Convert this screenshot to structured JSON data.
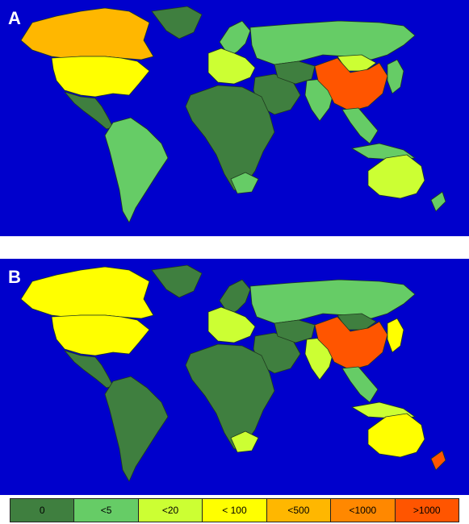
{
  "panels": [
    {
      "label": "A",
      "regions": {
        "canada": "#ffb700",
        "usa": "#ffff00",
        "mexico_central_america": "#3f7f3f",
        "south_america": "#66cc66",
        "greenland": "#3f7f3f",
        "europe_west": "#ccff33",
        "scandinavia": "#66cc66",
        "russia": "#66cc66",
        "middle_east": "#3f7f3f",
        "central_asia": "#3f7f3f",
        "india": "#66cc66",
        "china": "#ff5500",
        "mongolia": "#ccff33",
        "japan_korea": "#66cc66",
        "southeast_asia": "#66cc66",
        "indonesia": "#66cc66",
        "africa": "#3f7f3f",
        "south_africa": "#66cc66",
        "australia": "#ccff33",
        "new_zealand": "#66cc66"
      }
    },
    {
      "label": "B",
      "regions": {
        "canada": "#ffff00",
        "usa": "#ffff00",
        "mexico_central_america": "#3f7f3f",
        "south_america": "#3f7f3f",
        "greenland": "#3f7f3f",
        "europe_west": "#ccff33",
        "scandinavia": "#3f7f3f",
        "russia": "#66cc66",
        "middle_east": "#3f7f3f",
        "central_asia": "#3f7f3f",
        "india": "#ccff33",
        "china": "#ff5500",
        "mongolia": "#3f7f3f",
        "japan_korea": "#ffff00",
        "southeast_asia": "#66cc66",
        "indonesia": "#ccff33",
        "africa": "#3f7f3f",
        "south_africa": "#ccff33",
        "australia": "#ffff00",
        "new_zealand": "#ff5500"
      }
    }
  ],
  "legend": [
    {
      "label": "0",
      "color": "#3f7f3f"
    },
    {
      "label": "<5",
      "color": "#66cc66"
    },
    {
      "label": "<20",
      "color": "#ccff33"
    },
    {
      "label": "< 100",
      "color": "#ffff00"
    },
    {
      "label": "<500",
      "color": "#ffb700"
    },
    {
      "label": "<1000",
      "color": "#ff8800"
    },
    {
      "label": ">1000",
      "color": "#ff5500"
    }
  ]
}
